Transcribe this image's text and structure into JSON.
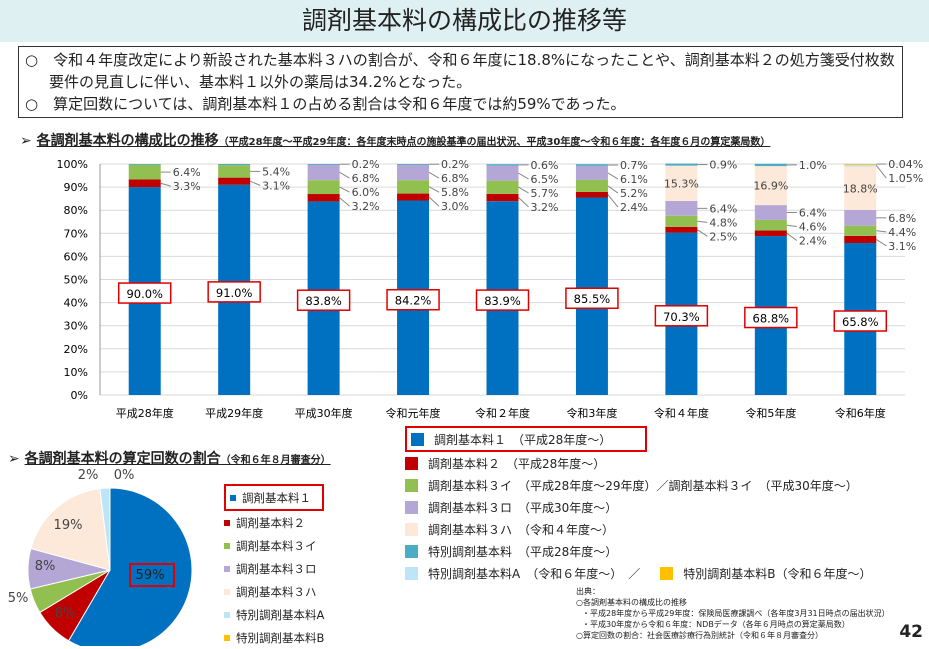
{
  "title": "調剤基本料の構成比の推移等",
  "summary": [
    "○　令和４年度改定により新設された基本料３ハの割合が、令和６年度に18.8%になったことや、調剤基本料２の処方箋受付枚数要件の見直しに伴い、基本料１以外の薬局は34.2%となった。",
    "○　算定回数については、調剤基本料１の占める割合は令和６年度では約59%であった。"
  ],
  "section1": {
    "arrow": "➢",
    "title": "各調剤基本料の構成比の推移",
    "sub": "（平成28年度～平成29年度：各年度末時点の施設基準の届出状況、平成30年度～令和６年度：各年度６月の算定薬局数）"
  },
  "section2": {
    "arrow": "➢",
    "title": "各調剤基本料の算定回数の割合",
    "sub": "（令和６年８月審査分）"
  },
  "colors": {
    "k1": "#0070c0",
    "k2": "#c00000",
    "k3i": "#92c050",
    "k3ro": "#b4a7d6",
    "k3ha": "#fde9d9",
    "special": "#4bacc6",
    "specialA": "#bde4f7",
    "specialB": "#ffc000"
  },
  "chart_data": [
    {
      "type": "bar",
      "stacked": true,
      "ylim": [
        0,
        100
      ],
      "yticks": [
        "0%",
        "10%",
        "20%",
        "30%",
        "40%",
        "50%",
        "60%",
        "70%",
        "80%",
        "90%",
        "100%"
      ],
      "categories": [
        "平成28年度",
        "平成29年度",
        "平成30年度",
        "令和元年度",
        "令和２年度",
        "令和3年度",
        "令和４年度",
        "令和5年度",
        "令和6年度"
      ],
      "series": [
        {
          "name": "調剤基本料１",
          "values": [
            90.0,
            91.0,
            83.8,
            84.2,
            83.9,
            85.5,
            70.3,
            68.8,
            65.8
          ],
          "labels": [
            "90.0%",
            "91.0%",
            "83.8%",
            "84.2%",
            "83.9%",
            "85.5%",
            "70.3%",
            "68.8%",
            "65.8%"
          ]
        },
        {
          "name": "調剤基本料２",
          "values": [
            3.3,
            3.1,
            3.2,
            3.0,
            3.2,
            2.4,
            2.5,
            2.4,
            3.1
          ],
          "labels": [
            "3.3%",
            "3.1%",
            "3.2%",
            "3.0%",
            "3.2%",
            "2.4%",
            "2.5%",
            "2.4%",
            "3.1%"
          ]
        },
        {
          "name": "調剤基本料３イ",
          "values": [
            6.4,
            5.4,
            6.0,
            5.8,
            5.7,
            5.2,
            4.8,
            4.6,
            4.4
          ],
          "labels": [
            "6.4%",
            "5.4%",
            "6.0%",
            "5.8%",
            "5.7%",
            "5.2%",
            "4.8%",
            "4.6%",
            "4.4%"
          ]
        },
        {
          "name": "調剤基本料３ロ",
          "values": [
            0,
            0,
            6.8,
            6.8,
            6.5,
            6.1,
            6.4,
            6.4,
            6.8
          ],
          "labels": [
            "",
            "",
            "6.8%",
            "6.8%",
            "6.5%",
            "6.1%",
            "6.4%",
            "6.4%",
            "6.8%"
          ]
        },
        {
          "name": "調剤基本料３ハ",
          "values": [
            0,
            0,
            0,
            0,
            0,
            0,
            15.3,
            16.9,
            18.8
          ],
          "labels": [
            "",
            "",
            "",
            "",
            "",
            "",
            "15.3%",
            "16.9%",
            "18.8%"
          ]
        },
        {
          "name": "特別調剤基本料",
          "values": [
            0.3,
            0.5,
            0.2,
            0.2,
            0.6,
            0.7,
            0.9,
            1.0,
            0
          ],
          "labels": [
            "",
            "",
            "0.2%",
            "0.2%",
            "0.6%",
            "0.7%",
            "0.9%",
            "1.0%",
            ""
          ]
        },
        {
          "name": "特別調剤基本料A",
          "values": [
            0,
            0,
            0,
            0,
            0,
            0,
            0,
            0,
            1.05
          ],
          "labels": [
            "",
            "",
            "",
            "",
            "",
            "",
            "",
            "",
            "1.05%"
          ]
        },
        {
          "name": "特別調剤基本料B",
          "values": [
            0,
            0,
            0,
            0,
            0,
            0,
            0,
            0,
            0.04
          ],
          "labels": [
            "",
            "",
            "",
            "",
            "",
            "",
            "",
            "",
            "0.04%"
          ]
        }
      ],
      "legend": [
        {
          "label": "調剤基本料１　（平成28年度～）",
          "key": "k1"
        },
        {
          "label": "調剤基本料２　（平成28年度～）",
          "key": "k2"
        },
        {
          "label": "調剤基本料３イ　（平成28年度～29年度）／調剤基本料３イ　（平成30年度～）",
          "key": "k3i"
        },
        {
          "label": "調剤基本料３ロ　（平成30年度～）",
          "key": "k3ro"
        },
        {
          "label": "調剤基本料３ハ　（令和４年度～）",
          "key": "k3ha"
        },
        {
          "label": "特別調剤基本料　（平成28年度～）",
          "key": "special"
        },
        {
          "label": "特別調剤基本料A　（令和６年度～）　／",
          "key": "specialA",
          "label2": "特別調剤基本料B（令和６年度～）",
          "key2": "specialB"
        }
      ]
    },
    {
      "type": "pie",
      "values": [
        59,
        8,
        5,
        8,
        19,
        2,
        0
      ],
      "labels": [
        "59%",
        "8%",
        "5%",
        "8%",
        "19%",
        "2%",
        "0%"
      ],
      "legend": [
        "調剤基本料１",
        "調剤基本料２",
        "調剤基本料３イ",
        "調剤基本料３ロ",
        "調剤基本料３ハ",
        "特別調剤基本料A",
        "特別調剤基本料B"
      ]
    }
  ],
  "source": [
    "出典：",
    "○各調剤基本料の構成比の推移",
    "・平成28年度から平成29年度：保険局医療課調べ（各年度3月31日時点の届出状況）",
    "・平成30年度から令和６年度：NDBデータ（各年６月時点の算定薬局数）",
    "○算定回数の割合：社会医療診療行為別統計（令和６年８月審査分）"
  ],
  "page": "42"
}
